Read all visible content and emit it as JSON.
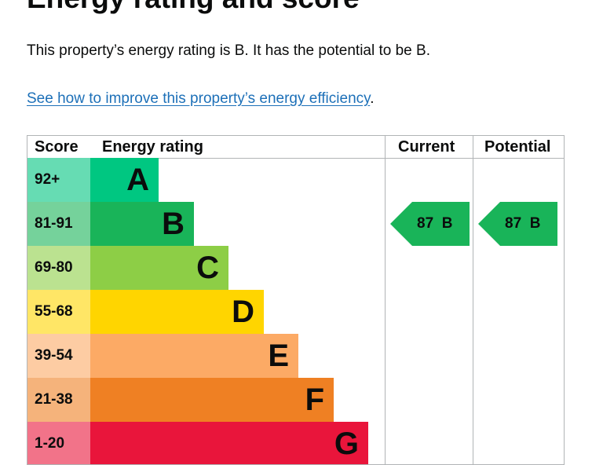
{
  "page": {
    "heading": "Energy rating and score",
    "summary": "This property’s energy rating is B. It has the potential to be B.",
    "improve_link": "See how to improve this property’s energy efficiency",
    "improve_suffix": "."
  },
  "epc_table": {
    "headers": {
      "score": "Score",
      "rating": "Energy rating",
      "current": "Current",
      "potential": "Potential"
    },
    "bands": [
      {
        "score": "92+",
        "letter": "A",
        "bar_color": "#00c781",
        "score_bg": "#66dcb3"
      },
      {
        "score": "81-91",
        "letter": "B",
        "bar_color": "#19b459",
        "score_bg": "#75d29b"
      },
      {
        "score": "69-80",
        "letter": "C",
        "bar_color": "#8dce46",
        "score_bg": "#bbe290"
      },
      {
        "score": "55-68",
        "letter": "D",
        "bar_color": "#ffd500",
        "score_bg": "#ffe666"
      },
      {
        "score": "39-54",
        "letter": "E",
        "bar_color": "#fcaa65",
        "score_bg": "#fdcca3"
      },
      {
        "score": "21-38",
        "letter": "F",
        "bar_color": "#ef8023",
        "score_bg": "#f5b37b"
      },
      {
        "score": "1-20",
        "letter": "G",
        "bar_color": "#e9153b",
        "score_bg": "#f27389"
      }
    ],
    "current": {
      "score": "87",
      "letter": "B",
      "color": "#19b459"
    },
    "potential": {
      "score": "87",
      "letter": "B",
      "color": "#19b459"
    }
  }
}
